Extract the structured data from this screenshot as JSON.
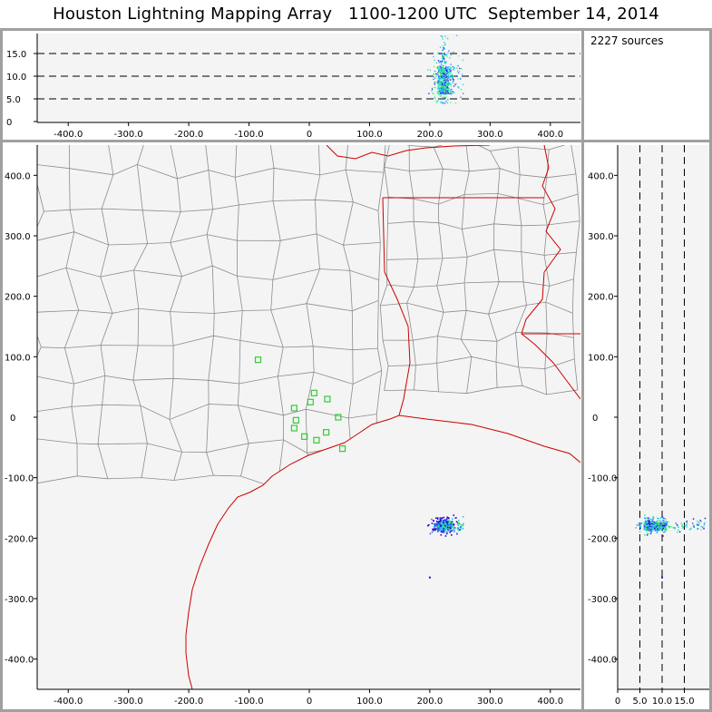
{
  "title": "Houston Lightning Mapping Array   1100-1200 UTC  September 14, 2014",
  "source_count": "2227 sources",
  "colors": {
    "frame": "#a0a0a0",
    "plot_bg": "#f4f4f4",
    "county_lines": "#8c8c8c",
    "coastline_and_state": "#cc0000",
    "stations": "#33cc33",
    "source_colormap": [
      "#2b00d4",
      "#3060ff",
      "#20c0ff",
      "#20e0a0",
      "#50ff50"
    ]
  },
  "chart_data": [
    {
      "type": "scatter",
      "name_role": "altitude_vs_x",
      "xlim": [
        -450,
        450
      ],
      "ylim": [
        0,
        20
      ],
      "x_ticks": [
        "-400.0",
        "-300.0",
        "-200.0",
        "-100.0",
        "0",
        "100.0",
        "200.0",
        "300.0",
        "400.0"
      ],
      "y_ticks": [
        "0",
        "5.0",
        "10.0",
        "15.0"
      ],
      "dashed_levels": [
        5,
        10,
        15
      ],
      "source_cluster": {
        "x_center": 222,
        "z_core": [
          6,
          12
        ],
        "z_max": 19
      }
    },
    {
      "type": "scatter",
      "name_role": "plan_view_y_vs_x",
      "xlim": [
        -450,
        450
      ],
      "ylim": [
        -450,
        450
      ],
      "x_ticks": [
        "-400.0",
        "-300.0",
        "-200.0",
        "-100.0",
        "0",
        "100.0",
        "200.0",
        "300.0",
        "400.0"
      ],
      "y_ticks": [
        "400.0",
        "300.0",
        "200.0",
        "100.0",
        "0",
        "-100.0",
        "-200.0",
        "-300.0",
        "-400.0"
      ],
      "source_cluster": {
        "x_center": 222,
        "y_center": -180,
        "stray_source": [
          200,
          -265
        ]
      },
      "stations": [
        [
          -85,
          95
        ],
        [
          -25,
          15
        ],
        [
          -22,
          -5
        ],
        [
          -25,
          -18
        ],
        [
          -8,
          -32
        ],
        [
          2,
          25
        ],
        [
          8,
          40
        ],
        [
          30,
          30
        ],
        [
          48,
          0
        ],
        [
          28,
          -25
        ],
        [
          12,
          -38
        ],
        [
          55,
          -52
        ]
      ]
    },
    {
      "type": "scatter",
      "name_role": "y_vs_altitude",
      "xlim": [
        0,
        20
      ],
      "ylim": [
        -450,
        450
      ],
      "x_ticks": [
        "0",
        "5.0",
        "10.0",
        "15.0"
      ],
      "y_ticks": [
        "400.0",
        "300.0",
        "200.0",
        "100.0",
        "0",
        "-100.0",
        "-200.0",
        "-300.0",
        "-400.0"
      ],
      "dashed_levels": [
        5,
        10,
        15
      ]
    }
  ]
}
